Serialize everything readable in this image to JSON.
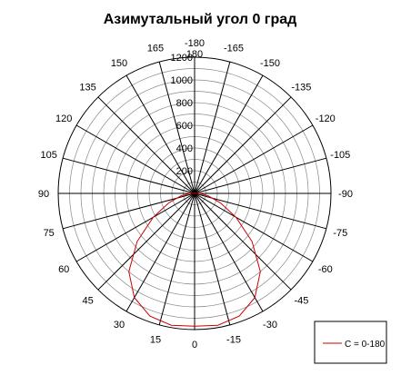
{
  "chart_data": {
    "type": "polar-line",
    "title": "Азимутальный угол 0 град",
    "angle_labels": [
      "-180",
      "-165",
      "-150",
      "-135",
      "-120",
      "-105",
      "-90",
      "-75",
      "-60",
      "-45",
      "-30",
      "-15",
      "0",
      "15",
      "30",
      "45",
      "60",
      "75",
      "90",
      "105",
      "120",
      "135",
      "150",
      "165",
      "180"
    ],
    "radial_ticks": [
      "200",
      "400",
      "600",
      "800",
      "1000",
      "1200"
    ],
    "rlim": [
      0,
      1200
    ],
    "grid": true,
    "legend_position": "bottom-right",
    "series": [
      {
        "name": "C = 0-180",
        "color": "#cc0000",
        "points": [
          {
            "angle": 0,
            "r": 1170
          },
          {
            "angle": 10,
            "r": 1180
          },
          {
            "angle": 20,
            "r": 1150
          },
          {
            "angle": 30,
            "r": 1060
          },
          {
            "angle": 40,
            "r": 900
          },
          {
            "angle": 50,
            "r": 660
          },
          {
            "angle": 60,
            "r": 420
          },
          {
            "angle": 70,
            "r": 240
          },
          {
            "angle": 80,
            "r": 120
          },
          {
            "angle": 90,
            "r": 40
          },
          {
            "angle": 100,
            "r": 10
          },
          {
            "angle": 120,
            "r": 0
          },
          {
            "angle": 180,
            "r": 0
          },
          {
            "angle": -120,
            "r": 0
          },
          {
            "angle": -100,
            "r": 10
          },
          {
            "angle": -90,
            "r": 40
          },
          {
            "angle": -80,
            "r": 120
          },
          {
            "angle": -70,
            "r": 240
          },
          {
            "angle": -60,
            "r": 420
          },
          {
            "angle": -50,
            "r": 660
          },
          {
            "angle": -40,
            "r": 900
          },
          {
            "angle": -30,
            "r": 1060
          },
          {
            "angle": -20,
            "r": 1150
          },
          {
            "angle": -10,
            "r": 1180
          },
          {
            "angle": 0,
            "r": 1170
          }
        ]
      }
    ]
  }
}
